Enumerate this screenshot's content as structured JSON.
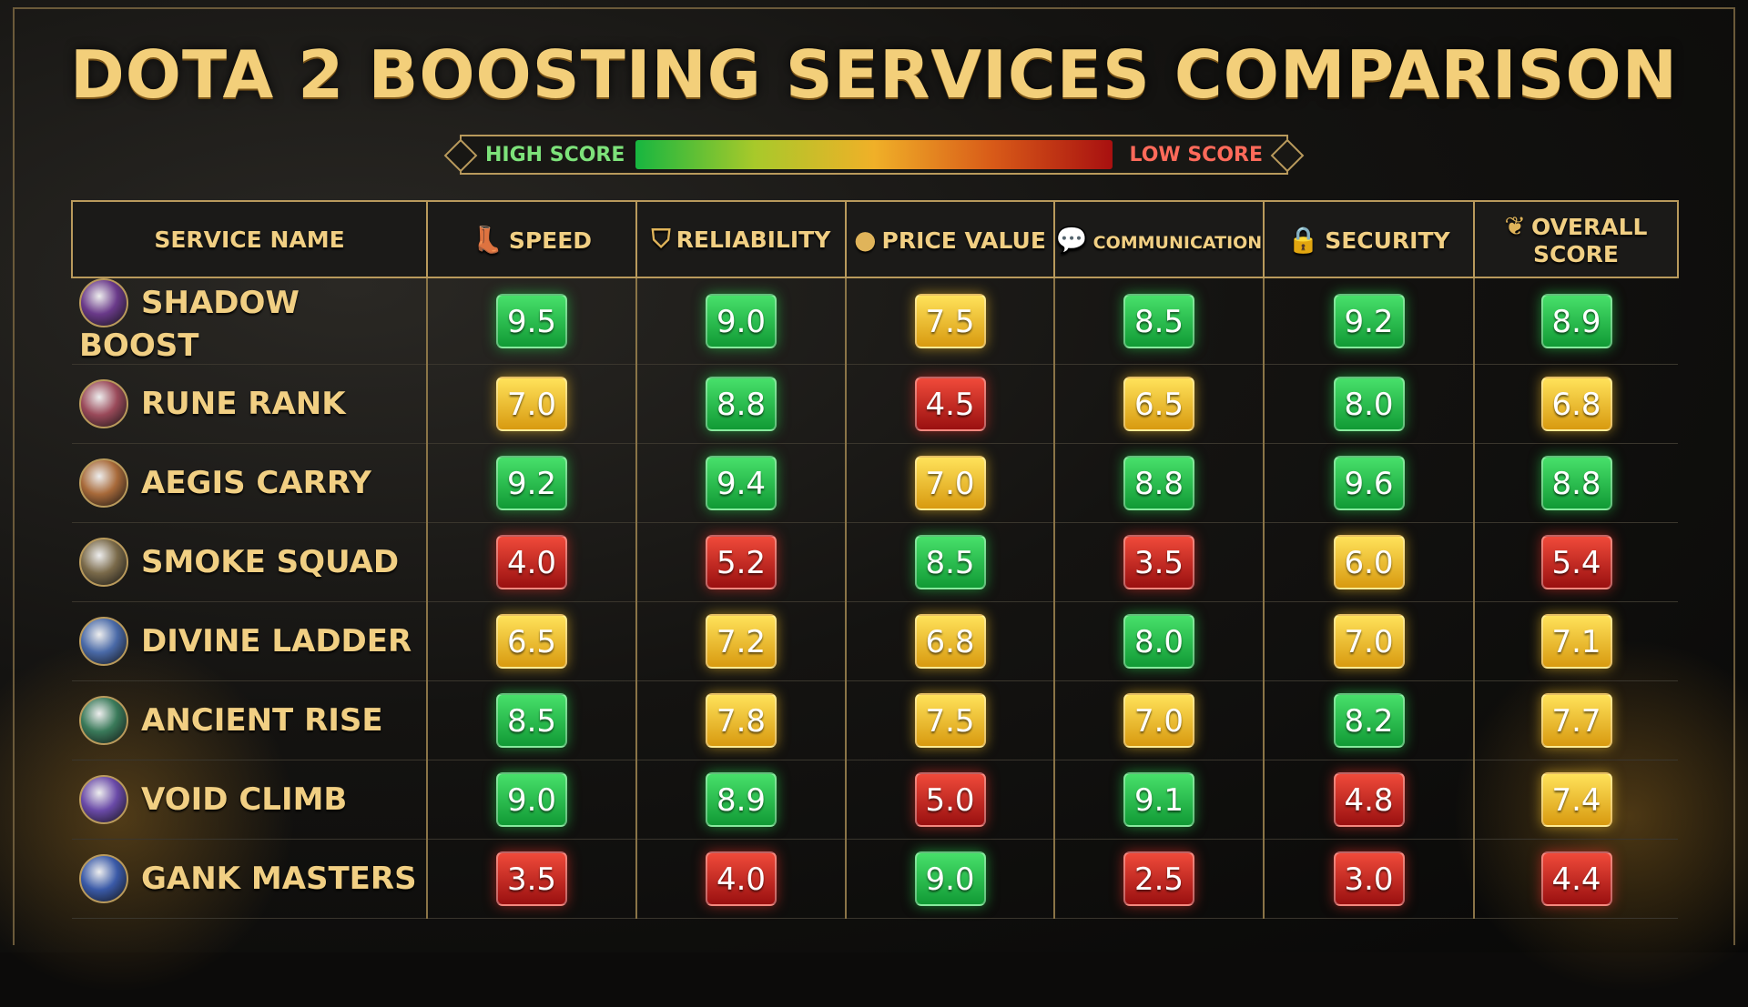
{
  "title": "DOTA 2 BOOSTING SERVICES COMPARISON",
  "legend": {
    "high": "HIGH SCORE",
    "low": "LOW SCORE",
    "colors": {
      "high": "#17b640",
      "mid": "#f0b028",
      "low": "#a81010"
    }
  },
  "columns": [
    {
      "label": "SERVICE NAME",
      "icon": ""
    },
    {
      "label": "SPEED",
      "icon": "boot-icon"
    },
    {
      "label": "RELIABILITY",
      "icon": "shield-icon"
    },
    {
      "label": "PRICE VALUE",
      "icon": "coin-icon"
    },
    {
      "label": "COMMUNICATION",
      "icon": "chat-bubble-icon"
    },
    {
      "label": "SECURITY",
      "icon": "lock-icon"
    },
    {
      "label": "OVERALL SCORE",
      "icon": "laurel-icon"
    }
  ],
  "rows": [
    {
      "name": "SHADOW BOOST",
      "avatar": "#6a3a8a",
      "scores": [
        "9.5",
        "9.0",
        "7.5",
        "8.5",
        "9.2",
        "8.9"
      ],
      "levels": [
        "g",
        "g",
        "y",
        "g",
        "g",
        "g"
      ]
    },
    {
      "name": "RUNE RANK",
      "avatar": "#9a4a5a",
      "scores": [
        "7.0",
        "8.8",
        "4.5",
        "6.5",
        "8.0",
        "6.8"
      ],
      "levels": [
        "y",
        "g",
        "r",
        "y",
        "g",
        "y"
      ]
    },
    {
      "name": "AEGIS CARRY",
      "avatar": "#a86a3a",
      "scores": [
        "9.2",
        "9.4",
        "7.0",
        "8.8",
        "9.6",
        "8.8"
      ],
      "levels": [
        "g",
        "g",
        "y",
        "g",
        "g",
        "g"
      ]
    },
    {
      "name": "SMOKE SQUAD",
      "avatar": "#7a6a4a",
      "scores": [
        "4.0",
        "5.2",
        "8.5",
        "3.5",
        "6.0",
        "5.4"
      ],
      "levels": [
        "r",
        "r",
        "g",
        "r",
        "y",
        "r"
      ]
    },
    {
      "name": "DIVINE LADDER",
      "avatar": "#4a6aa8",
      "scores": [
        "6.5",
        "7.2",
        "6.8",
        "8.0",
        "7.0",
        "7.1"
      ],
      "levels": [
        "y",
        "y",
        "y",
        "g",
        "y",
        "y"
      ]
    },
    {
      "name": "ANCIENT RISE",
      "avatar": "#3a7a5a",
      "scores": [
        "8.5",
        "7.8",
        "7.5",
        "7.0",
        "8.2",
        "7.7"
      ],
      "levels": [
        "g",
        "y",
        "y",
        "y",
        "g",
        "y"
      ]
    },
    {
      "name": "VOID CLIMB",
      "avatar": "#6a4aa8",
      "scores": [
        "9.0",
        "8.9",
        "5.0",
        "9.1",
        "4.8",
        "7.4"
      ],
      "levels": [
        "g",
        "g",
        "r",
        "g",
        "r",
        "y"
      ]
    },
    {
      "name": "GANK MASTERS",
      "avatar": "#3a5aa8",
      "scores": [
        "3.5",
        "4.0",
        "9.0",
        "2.5",
        "3.0",
        "4.4"
      ],
      "levels": [
        "r",
        "r",
        "g",
        "r",
        "r",
        "r"
      ]
    }
  ]
}
